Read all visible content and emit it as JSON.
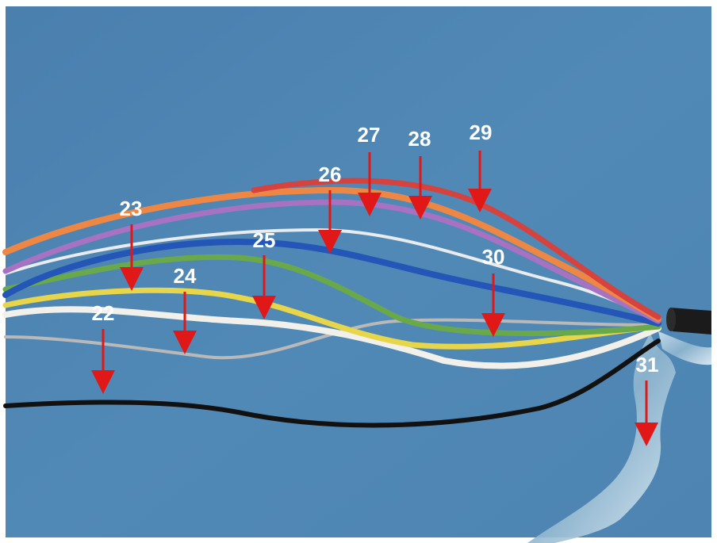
{
  "callouts": [
    {
      "id": "22",
      "label": "22"
    },
    {
      "id": "23",
      "label": "23"
    },
    {
      "id": "24",
      "label": "24"
    },
    {
      "id": "25",
      "label": "25"
    },
    {
      "id": "26",
      "label": "26"
    },
    {
      "id": "27",
      "label": "27"
    },
    {
      "id": "28",
      "label": "28"
    },
    {
      "id": "29",
      "label": "29"
    },
    {
      "id": "30",
      "label": "30"
    },
    {
      "id": "31",
      "label": "31"
    }
  ],
  "colors": {
    "arrow": "#e01818",
    "label": "#ffffff",
    "background": "#4f86b3"
  }
}
